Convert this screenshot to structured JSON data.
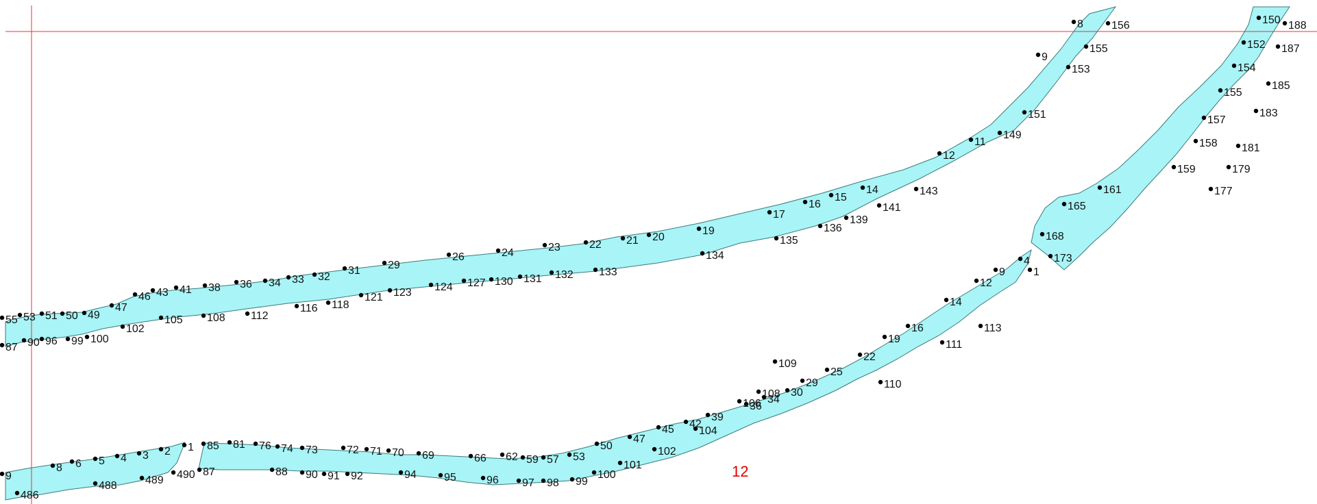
{
  "colors": {
    "band_fill": "#a8f4f6",
    "band_stroke": "#3a7a7c",
    "guide_line": "#f03030",
    "point": "#000000",
    "label": "#111111",
    "sheet_number": "#e00000"
  },
  "sheet_number": "12",
  "upper_road": {
    "labels": [
      "55",
      "53",
      "51",
      "50",
      "49",
      "47",
      "46",
      "43",
      "41",
      "38",
      "36",
      "34",
      "33",
      "32",
      "31",
      "29",
      "26",
      "24",
      "23",
      "22",
      "21",
      "20",
      "19",
      "17",
      "16",
      "15",
      "14",
      "12",
      "11",
      "8",
      "87",
      "90",
      "96",
      "99",
      "100",
      "102",
      "105",
      "108",
      "112",
      "116",
      "118",
      "121",
      "123",
      "124",
      "127",
      "130",
      "131",
      "132",
      "133",
      "134",
      "135",
      "136",
      "139",
      "141",
      "143",
      "149",
      "151",
      "153",
      "155",
      "156",
      "9"
    ]
  },
  "right_road": {
    "labels": [
      "150",
      "188",
      "152",
      "187",
      "154",
      "185",
      "155",
      "183",
      "157",
      "181",
      "158",
      "179",
      "159",
      "177",
      "161",
      "165",
      "168",
      "173"
    ]
  },
  "lower_road": {
    "labels": [
      "9",
      "8",
      "6",
      "5",
      "4",
      "3",
      "2",
      "1",
      "486",
      "488",
      "489",
      "490",
      "85",
      "81",
      "76",
      "74",
      "73",
      "72",
      "71",
      "70",
      "69",
      "66",
      "62",
      "59",
      "57",
      "53",
      "50",
      "47",
      "45",
      "42",
      "39",
      "36",
      "34",
      "30",
      "29",
      "25",
      "22",
      "19",
      "16",
      "14",
      "12",
      "9",
      "4",
      "1",
      "87",
      "88",
      "90",
      "91",
      "92",
      "94",
      "95",
      "96",
      "97",
      "98",
      "99",
      "100",
      "101",
      "102",
      "104",
      "106",
      "108",
      "109",
      "110",
      "111",
      "113"
    ]
  }
}
